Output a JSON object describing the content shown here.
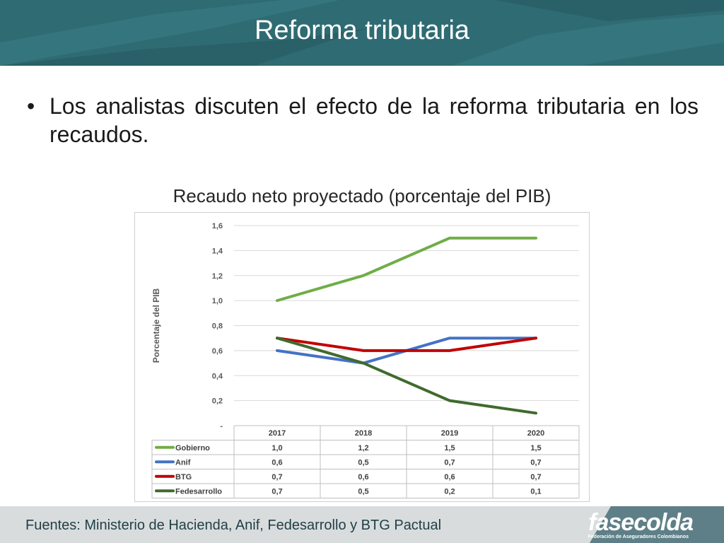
{
  "header": {
    "title": "Reforma tributaria"
  },
  "bullet": {
    "marker": "•",
    "text": "Los analistas discuten el efecto de la reforma tributaria en los recaudos."
  },
  "chart_data": {
    "type": "line",
    "title": "Recaudo neto proyectado (porcentaje del PIB)",
    "ylabel": "Porcentaje del PIB",
    "xlabel": "",
    "categories": [
      "2017",
      "2018",
      "2019",
      "2020"
    ],
    "ylim": [
      0,
      1.6
    ],
    "yticks": [
      "-",
      "0,2",
      "0,4",
      "0,6",
      "0,8",
      "1,0",
      "1,2",
      "1,4",
      "1,6"
    ],
    "grid": true,
    "legend": "data-table",
    "series": [
      {
        "name": "Gobierno",
        "values": [
          1.0,
          1.2,
          1.5,
          1.5
        ],
        "labels": [
          "1,0",
          "1,2",
          "1,5",
          "1,5"
        ],
        "color": "#70ad47"
      },
      {
        "name": "Anif",
        "values": [
          0.6,
          0.5,
          0.7,
          0.7
        ],
        "labels": [
          "0,6",
          "0,5",
          "0,7",
          "0,7"
        ],
        "color": "#4472c4"
      },
      {
        "name": "BTG",
        "values": [
          0.7,
          0.6,
          0.6,
          0.7
        ],
        "labels": [
          "0,7",
          "0,6",
          "0,6",
          "0,7"
        ],
        "color": "#c00000"
      },
      {
        "name": "Fedesarrollo",
        "values": [
          0.7,
          0.5,
          0.2,
          0.1
        ],
        "labels": [
          "0,7",
          "0,5",
          "0,2",
          "0,1"
        ],
        "color": "#3f6b2e"
      }
    ]
  },
  "footer": {
    "sources": "Fuentes: Ministerio de Hacienda, Anif, Fedesarrollo y BTG Pactual"
  },
  "logo": {
    "name": "fasecolda",
    "subtitle": "Federación de Aseguradores Colombianos"
  }
}
